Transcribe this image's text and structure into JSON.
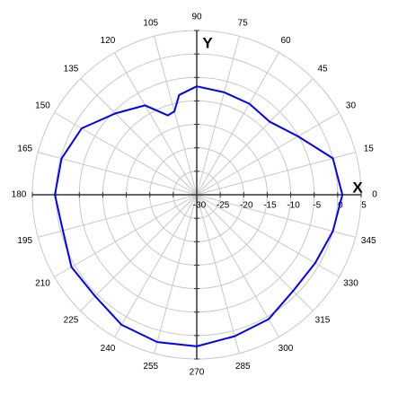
{
  "chart_data": {
    "type": "polar",
    "x_label": "X",
    "y_label": "Y",
    "x": [
      0,
      15,
      30,
      45,
      60,
      75,
      90,
      100,
      105,
      110,
      120,
      135,
      150,
      165,
      180,
      195,
      210,
      225,
      240,
      255,
      270,
      285,
      300,
      315,
      330,
      345
    ],
    "series": [
      {
        "color": "#0000ff",
        "values": [
          1,
          0,
          -5.1,
          -8,
          -7.6,
          -7.4,
          -6.9,
          -8.4,
          -11.6,
          -12,
          -8,
          -5.5,
          -1.7,
          -0.2,
          0.2,
          -0.5,
          0.8,
          0.6,
          2,
          2.5,
          2.3,
          1.2,
          0.6,
          -1,
          -0.9,
          0
        ]
      }
    ],
    "xticks": [
      0,
      15,
      30,
      45,
      60,
      75,
      90,
      105,
      120,
      135,
      150,
      165,
      180,
      195,
      210,
      225,
      240,
      255,
      270,
      285,
      300,
      315,
      330,
      345
    ],
    "ylim": [
      -30,
      5
    ],
    "yticks": [
      -30,
      -25,
      -20,
      -15,
      -10,
      -5,
      0,
      5
    ],
    "grid": true
  }
}
